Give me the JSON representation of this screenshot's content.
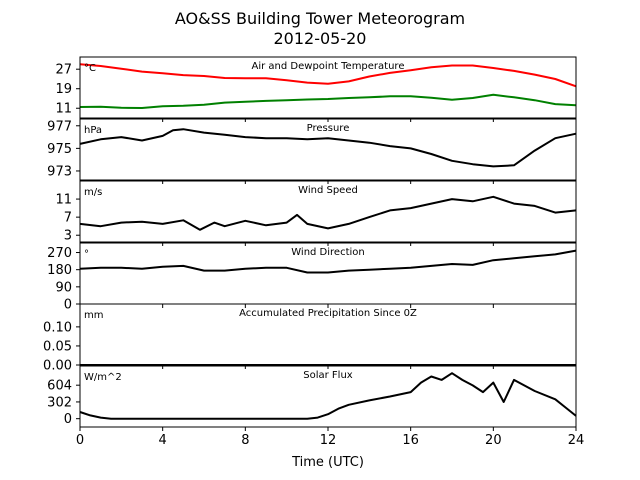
{
  "title": "AO&SS Building Tower Meteorogram",
  "subtitle": "2012-05-20",
  "xlabel": "Time (UTC)",
  "x_ticks": [
    0,
    4,
    8,
    12,
    16,
    20,
    24
  ],
  "xlim": [
    0,
    24
  ],
  "colors": {
    "temperature": "#ff0000",
    "dewpoint": "#008000",
    "black": "#000000"
  },
  "chart_data": [
    {
      "type": "line",
      "title": "Air and Dewpoint Temperature",
      "unit": "°C",
      "ylim": [
        7,
        32
      ],
      "y_ticks": [
        27,
        19,
        11
      ],
      "x": [
        0,
        1,
        2,
        3,
        4,
        5,
        6,
        7,
        8,
        9,
        10,
        11,
        12,
        13,
        14,
        15,
        16,
        17,
        18,
        19,
        20,
        21,
        22,
        23,
        24
      ],
      "series": [
        {
          "values": [
            29,
            28.3,
            27.2,
            26,
            25.3,
            24.6,
            24.2,
            23.4,
            23.3,
            23.3,
            22.5,
            21.5,
            21,
            22,
            24,
            25.5,
            26.6,
            27.8,
            28.5,
            28.5,
            27.5,
            26.3,
            24.8,
            23,
            20
          ],
          "color_key": "temperature"
        },
        {
          "values": [
            11.5,
            11.6,
            11.2,
            11.1,
            11.8,
            12.0,
            12.4,
            13.3,
            13.7,
            14.0,
            14.3,
            14.6,
            14.8,
            15.2,
            15.5,
            15.9,
            15.9,
            15.3,
            14.5,
            15.2,
            16.5,
            15.5,
            14.3,
            12.7,
            12.2
          ],
          "color_key": "dewpoint"
        }
      ]
    },
    {
      "type": "line",
      "title": "Pressure",
      "unit": "hPa",
      "ylim": [
        972.2,
        977.6
      ],
      "y_ticks": [
        977,
        975,
        973
      ],
      "x": [
        0,
        1,
        2,
        3,
        4,
        4.5,
        5,
        6,
        7,
        8,
        9,
        10,
        11,
        12,
        13,
        14,
        15,
        16,
        17,
        18,
        19,
        20,
        21,
        22,
        23,
        24
      ],
      "series": [
        {
          "values": [
            975.4,
            975.8,
            976.0,
            975.7,
            976.1,
            976.6,
            976.7,
            976.4,
            976.2,
            976.0,
            975.9,
            975.9,
            975.8,
            975.9,
            975.7,
            975.5,
            975.2,
            975.0,
            974.5,
            973.9,
            973.6,
            973.4,
            973.5,
            974.8,
            975.9,
            976.3
          ],
          "color_key": "black"
        }
      ]
    },
    {
      "type": "line",
      "title": "Wind Speed",
      "unit": "m/s",
      "ylim": [
        1.5,
        15
      ],
      "y_ticks": [
        11,
        7,
        3
      ],
      "x": [
        0,
        1,
        2,
        3,
        4,
        5,
        5.8,
        6.5,
        7,
        8,
        9,
        10,
        10.5,
        11,
        12,
        13,
        14,
        15,
        16,
        17,
        18,
        19,
        20,
        21,
        22,
        23,
        24
      ],
      "series": [
        {
          "values": [
            5.5,
            5.0,
            5.8,
            6.0,
            5.5,
            6.3,
            4.2,
            5.8,
            5.0,
            6.2,
            5.2,
            5.8,
            7.5,
            5.5,
            4.5,
            5.5,
            7.0,
            8.5,
            9.0,
            10.0,
            11.0,
            10.5,
            11.5,
            10.0,
            9.5,
            8.0,
            8.5
          ],
          "color_key": "black"
        }
      ]
    },
    {
      "type": "line",
      "title": "Wind Direction",
      "unit": "°",
      "ylim": [
        0,
        320
      ],
      "y_ticks": [
        270,
        180,
        90,
        0
      ],
      "x": [
        0,
        1,
        2,
        3,
        4,
        5,
        6,
        7,
        8,
        9,
        10,
        11,
        12,
        13,
        14,
        15,
        16,
        17,
        18,
        19,
        20,
        21,
        22,
        23,
        24
      ],
      "series": [
        {
          "values": [
            185,
            190,
            190,
            185,
            195,
            200,
            175,
            175,
            185,
            190,
            190,
            165,
            165,
            175,
            180,
            185,
            190,
            200,
            210,
            205,
            230,
            240,
            250,
            260,
            280
          ],
          "color_key": "black"
        }
      ]
    },
    {
      "type": "line",
      "title": "Accumulated Precipitation Since 0Z",
      "unit": "mm",
      "ylim": [
        0,
        0.16
      ],
      "y_ticks": [
        "0.10",
        "0.05",
        "0.00"
      ],
      "x": [
        0,
        24
      ],
      "series": [
        {
          "values": [
            0,
            0
          ],
          "color_key": "black"
        }
      ]
    },
    {
      "type": "line",
      "title": "Solar Flux",
      "unit": "W/m^2",
      "ylim": [
        -150,
        950
      ],
      "y_ticks": [
        604,
        302,
        0
      ],
      "x": [
        0,
        0.5,
        1,
        1.5,
        2,
        4,
        6,
        8,
        10,
        11,
        11.5,
        12,
        12.5,
        13,
        14,
        15,
        16,
        16.5,
        17,
        17.5,
        18,
        18.5,
        19,
        19.5,
        20,
        20.5,
        21,
        22,
        23,
        23.5,
        24
      ],
      "series": [
        {
          "values": [
            120,
            60,
            20,
            0,
            0,
            0,
            0,
            0,
            0,
            0,
            20,
            80,
            180,
            250,
            330,
            400,
            480,
            650,
            760,
            700,
            820,
            700,
            600,
            480,
            650,
            300,
            700,
            500,
            350,
            200,
            50
          ],
          "color_key": "black"
        }
      ]
    }
  ]
}
